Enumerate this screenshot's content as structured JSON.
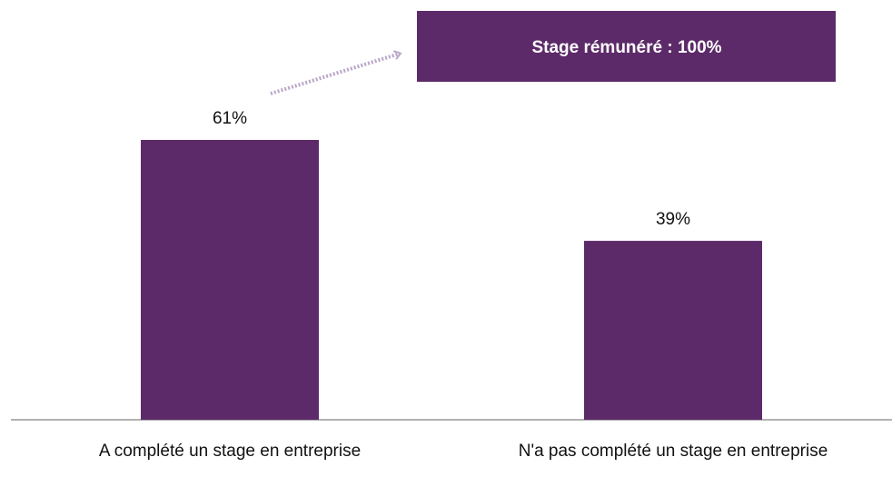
{
  "chart_data": {
    "type": "bar",
    "categories": [
      "A complété un stage en entreprise",
      "N'a pas complété un stage en entreprise"
    ],
    "values": [
      61,
      39
    ],
    "value_labels": [
      "61%",
      "39%"
    ],
    "color": "#5d2a69",
    "annotation": "Stage rémunéré : 100%"
  }
}
